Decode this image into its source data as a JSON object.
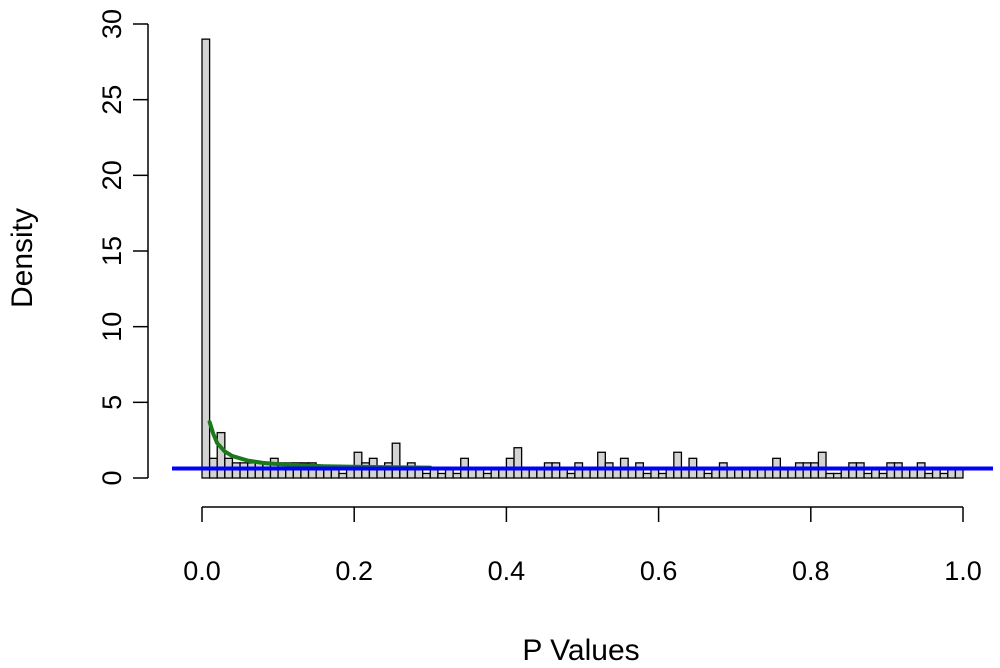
{
  "chart_data": {
    "type": "bar",
    "title": "",
    "xlabel": "P Values",
    "ylabel": "Density",
    "xlim": [
      0,
      1
    ],
    "ylim": [
      0,
      30
    ],
    "x_ticks": [
      "0.0",
      "0.2",
      "0.4",
      "0.6",
      "0.8",
      "1.0"
    ],
    "y_ticks": [
      "0",
      "5",
      "10",
      "15",
      "20",
      "25",
      "30"
    ],
    "bin_width": 0.01,
    "densities": [
      29.0,
      1.3,
      3.0,
      1.3,
      1.0,
      1.0,
      1.0,
      1.0,
      1.0,
      1.3,
      1.0,
      1.0,
      1.0,
      1.0,
      1.0,
      0.7,
      0.7,
      0.7,
      0.3,
      0.7,
      1.7,
      1.0,
      1.3,
      0.7,
      1.0,
      2.3,
      0.7,
      1.0,
      0.7,
      0.3,
      0.7,
      0.3,
      0.7,
      0.3,
      1.3,
      0.7,
      0.7,
      0.3,
      0.7,
      0.7,
      1.3,
      2.0,
      0.7,
      0.7,
      0.7,
      1.0,
      1.0,
      0.7,
      0.3,
      1.0,
      0.7,
      0.7,
      1.7,
      1.0,
      0.7,
      1.3,
      0.7,
      1.0,
      0.3,
      0.7,
      0.3,
      0.7,
      1.7,
      0.7,
      1.3,
      0.7,
      0.3,
      0.7,
      1.0,
      0.7,
      0.7,
      0.7,
      0.7,
      0.7,
      0.7,
      1.3,
      0.7,
      0.7,
      1.0,
      1.0,
      1.0,
      1.7,
      0.3,
      0.3,
      0.7,
      1.0,
      1.0,
      0.3,
      0.7,
      0.3,
      1.0,
      1.0,
      0.7,
      0.7,
      1.0,
      0.3,
      0.7,
      0.3,
      0.7,
      0.7
    ],
    "bar_fill": "#d3d3d3",
    "bar_stroke": "#000000",
    "reference_line": {
      "y": 0.63,
      "color": "#0000ff"
    },
    "fitted_curve": {
      "color": "#1a7a1a",
      "x": [
        0.01,
        0.015,
        0.02,
        0.03,
        0.04,
        0.06,
        0.08,
        0.1,
        0.13,
        0.16,
        0.2,
        0.25,
        0.3
      ],
      "y": [
        3.7,
        2.9,
        2.3,
        1.75,
        1.45,
        1.15,
        1.0,
        0.92,
        0.84,
        0.78,
        0.74,
        0.71,
        0.69
      ]
    }
  }
}
